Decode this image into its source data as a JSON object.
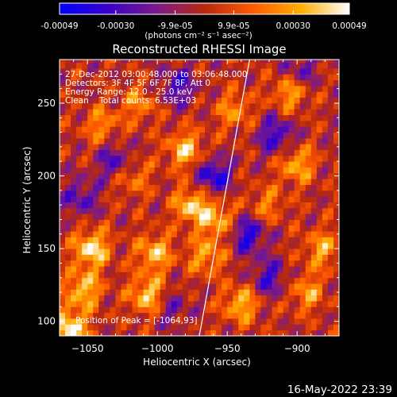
{
  "chart_data": {
    "type": "heatmap",
    "title": "Reconstructed RHESSI Image",
    "xlabel": "Heliocentric X (arcsec)",
    "ylabel": "Heliocentric Y (arcsec)",
    "xlim": [
      -1070,
      -870
    ],
    "ylim": [
      90,
      280
    ],
    "x_ticks": [
      -1050,
      -1000,
      -950,
      -900
    ],
    "y_ticks": [
      100,
      150,
      200,
      250
    ],
    "grid": false,
    "colorbar": {
      "range": [
        -0.00049,
        0.00049
      ],
      "tick_values": [
        -0.00049,
        -0.0003,
        -9.9e-05,
        9.9e-05,
        0.0003,
        0.00049
      ],
      "tick_labels": [
        "-0.00049",
        "-0.00030",
        "-9.9e-05",
        "9.9e-05",
        "0.00030",
        "0.00049"
      ],
      "unit_label": "(photons cm⁻² s⁻¹ asec⁻²)",
      "colors": [
        "#0000ff",
        "#3a00c8",
        "#7a1a8c",
        "#b8280e",
        "#ff5a00",
        "#ffae00",
        "#ffffff"
      ]
    },
    "limb_line": {
      "x": [
        -970,
        -934
      ],
      "y": [
        90,
        280
      ]
    },
    "annotations": [
      "27-Dec-2012 03:00:48.000 to 03:06:48.000",
      "Detectors: 3F 4F 5F 6F 7F 8F, Att 0",
      "Energy Range: 12.0 - 25.0 keV",
      "Clean    Total counts: 6.53E+03"
    ],
    "peak_label": "Position of Peak = [-1064,93]",
    "hotspots": [
      {
        "x": -1063,
        "y": 95,
        "value": 0.00049
      },
      {
        "x": -1047,
        "y": 150,
        "value": 0.00045
      },
      {
        "x": -1007,
        "y": 118,
        "value": 0.0004
      },
      {
        "x": -1002,
        "y": 147,
        "value": 0.00036
      },
      {
        "x": -980,
        "y": 218,
        "value": 0.00038
      },
      {
        "x": -975,
        "y": 180,
        "value": 0.0004
      },
      {
        "x": -957,
        "y": 170,
        "value": 0.00032
      },
      {
        "x": -965,
        "y": 145,
        "value": 0.0003
      },
      {
        "x": -940,
        "y": 112,
        "value": 0.00035
      },
      {
        "x": -905,
        "y": 258,
        "value": 0.00032
      },
      {
        "x": -900,
        "y": 208,
        "value": 0.00033
      },
      {
        "x": -882,
        "y": 150,
        "value": 0.0003
      },
      {
        "x": -893,
        "y": 120,
        "value": 0.00028
      },
      {
        "x": -1040,
        "y": 235,
        "value": 0.00025
      },
      {
        "x": -1018,
        "y": 200,
        "value": 0.00024
      },
      {
        "x": -1053,
        "y": 122,
        "value": 0.00038
      },
      {
        "x": -1013,
        "y": 250,
        "value": 0.00024
      },
      {
        "x": -945,
        "y": 245,
        "value": 0.00025
      },
      {
        "x": -922,
        "y": 180,
        "value": 0.00022
      }
    ],
    "coldspots": [
      {
        "x": -960,
        "y": 200,
        "value": -0.0004
      },
      {
        "x": -935,
        "y": 160,
        "value": -0.00038
      },
      {
        "x": -915,
        "y": 228,
        "value": -0.00034
      },
      {
        "x": -1030,
        "y": 210,
        "value": -0.0003
      },
      {
        "x": -985,
        "y": 262,
        "value": -0.0003
      },
      {
        "x": -1055,
        "y": 185,
        "value": -0.00026
      },
      {
        "x": -920,
        "y": 130,
        "value": -0.0003
      },
      {
        "x": -990,
        "y": 110,
        "value": -0.0002
      },
      {
        "x": -898,
        "y": 272,
        "value": -0.00024
      }
    ]
  },
  "footer": {
    "timestamp": "16-May-2022 23:39"
  }
}
